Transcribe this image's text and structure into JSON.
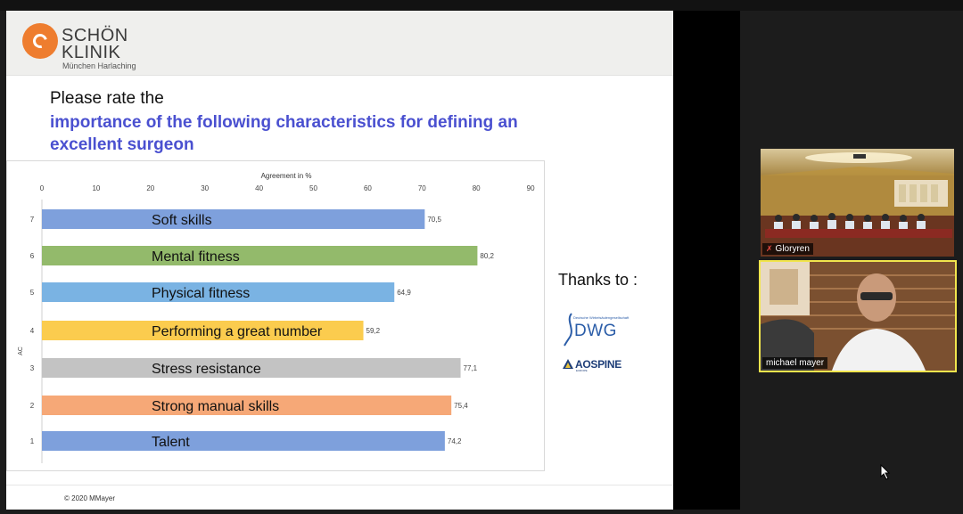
{
  "slide": {
    "logo": {
      "line1": "SCHÖN",
      "line2": "KLINIK",
      "sub": "München Harlaching"
    },
    "question_line1": "Please rate the",
    "question_line2": "importance of the following characteristics for defining an excellent surgeon",
    "thanks": "Thanks to :",
    "sponsor1": {
      "name": "DWG",
      "small_text": "Deutsche Wirbelsäulengesellschaft"
    },
    "sponsor2": {
      "name": "AOSPINE",
      "small_text": "EUROPE"
    },
    "copyright": "© 2020 MMayer"
  },
  "chart_data": {
    "type": "bar",
    "orientation": "horizontal",
    "title": "Agreement in %",
    "xlabel": "Agreement in %",
    "ylabel": "AC",
    "xlim": [
      0,
      90
    ],
    "xticks": [
      0,
      10,
      20,
      30,
      40,
      50,
      60,
      70,
      80,
      90
    ],
    "grid": false,
    "legend": "none",
    "categories": [
      "Soft skills",
      "Mental fitness",
      "Physical fitness",
      "Performing a great number",
      "Stress resistance",
      "Strong manual skills",
      "Talent"
    ],
    "row_ids": [
      "7",
      "6",
      "5",
      "4",
      "3",
      "2",
      "1"
    ],
    "values": [
      70.5,
      80.2,
      64.9,
      59.2,
      77.1,
      75.4,
      74.2
    ],
    "value_labels": [
      "70,5",
      "80,2",
      "64,9",
      "59,2",
      "77,1",
      "75,4",
      "74,2"
    ],
    "colors": [
      "#7ea0dc",
      "#93ba6b",
      "#7ab3e3",
      "#fbcc4e",
      "#c3c3c3",
      "#f6a877",
      "#7ea0dc"
    ]
  },
  "participants": [
    {
      "name": "Gloryren",
      "muted": true,
      "scene": "conference room"
    },
    {
      "name": "michael mayer",
      "muted": false,
      "active_speaker": true,
      "scene": "webcam"
    }
  ],
  "colors": {
    "highlight_border": "#f1e54d",
    "question_accent": "#4a50d0",
    "logo_orange": "#ee7d2f"
  }
}
